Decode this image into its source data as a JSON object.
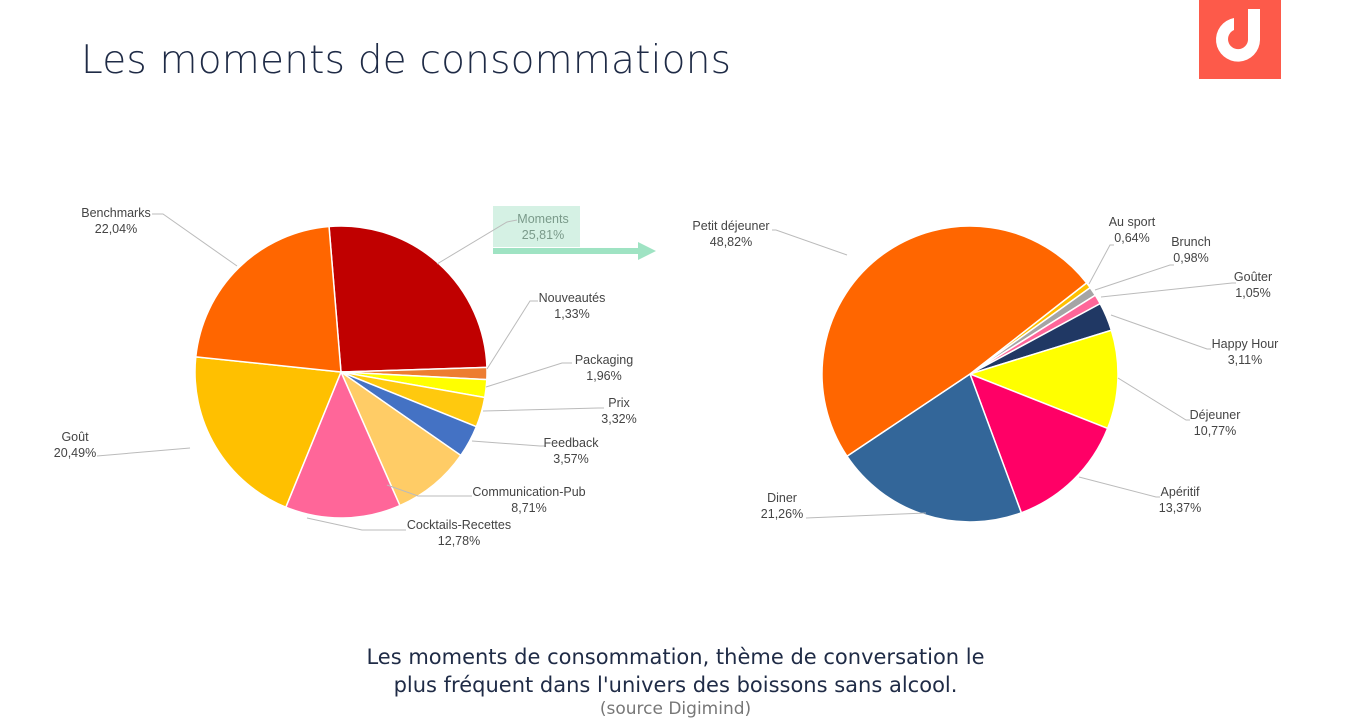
{
  "header": {
    "title": "Les moments de consommations"
  },
  "logo": {
    "text": "d",
    "color": "#fd5a4a"
  },
  "caption": {
    "line1": "Les moments de consommation, thème de conversation le",
    "line2": "plus fréquent dans l'univers des boissons sans alcool.",
    "source": "(source Digimind)"
  },
  "chart_data": [
    {
      "type": "pie",
      "title": "",
      "highlight": "Moments",
      "categories": [
        "Moments",
        "Nouveautés",
        "Packaging",
        "Prix",
        "Feedback",
        "Communication-Pub",
        "Cocktails-Recettes",
        "Goût",
        "Benchmarks"
      ],
      "values": [
        25.81,
        1.33,
        1.96,
        3.32,
        3.57,
        8.71,
        12.78,
        20.49,
        22.04
      ],
      "value_labels": [
        "25,81%",
        "1,33%",
        "1,96%",
        "3,32%",
        "3,57%",
        "8,71%",
        "12,78%",
        "20,49%",
        "22,04%"
      ],
      "colors": [
        "#c00000",
        "#ed7d31",
        "#ffff00",
        "#ffc90e",
        "#4472c4",
        "#ffcc66",
        "#ff6699",
        "#ffc000",
        "#ff6600"
      ]
    },
    {
      "type": "pie",
      "title": "",
      "categories": [
        "Au sport",
        "Brunch",
        "Goûter",
        "Happy Hour",
        "Déjeuner",
        "Apéritif",
        "Diner",
        "Petit déjeuner"
      ],
      "values": [
        0.64,
        0.98,
        1.05,
        3.11,
        10.77,
        13.37,
        21.26,
        48.82
      ],
      "value_labels": [
        "0,64%",
        "0,98%",
        "1,05%",
        "3,11%",
        "10,77%",
        "13,37%",
        "21,26%",
        "48,82%"
      ],
      "colors": [
        "#ffc000",
        "#a5a5a5",
        "#ff6699",
        "#203864",
        "#ffff00",
        "#ff0066",
        "#336699",
        "#ff6600"
      ]
    }
  ]
}
